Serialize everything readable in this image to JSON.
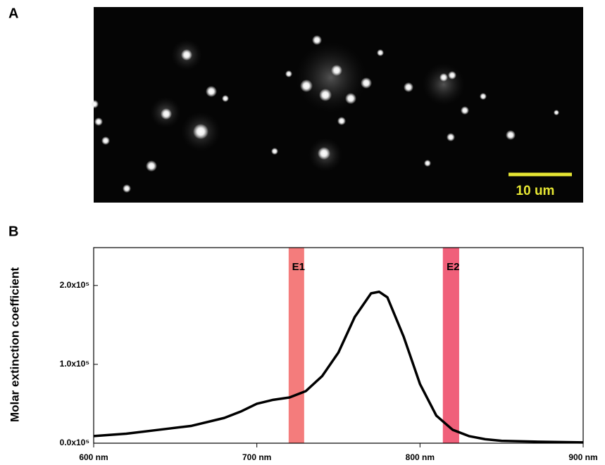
{
  "image": {
    "panel_label": "A",
    "scale_bar_label": "10 um"
  },
  "chart_data": {
    "type": "line",
    "panel_label": "B",
    "y_label": "Molar extinction coefficient",
    "x": [
      600,
      620,
      640,
      660,
      680,
      690,
      700,
      710,
      720,
      730,
      740,
      750,
      760,
      770,
      775,
      780,
      790,
      800,
      810,
      820,
      830,
      840,
      850,
      870,
      900
    ],
    "series": [
      {
        "color": "#000000",
        "values": [
          9000,
          12000,
          17000,
          22000,
          32000,
          40000,
          50000,
          55000,
          58000,
          66000,
          85000,
          115000,
          160000,
          190000,
          192000,
          185000,
          135000,
          75000,
          35000,
          17000,
          9000,
          5000,
          3000,
          2000,
          1000
        ]
      }
    ],
    "bands": [
      {
        "label": "E1",
        "range": [
          719.5,
          729
        ],
        "color": "#f47c7c"
      },
      {
        "label": "E2",
        "range": [
          814,
          824
        ],
        "color": "#f0607a"
      }
    ],
    "xlim": [
      600,
      900
    ],
    "xticks": [
      {
        "value": 600,
        "label": "600 nm"
      },
      {
        "value": 700,
        "label": "700 nm"
      },
      {
        "value": 800,
        "label": "800 nm"
      },
      {
        "value": 900,
        "label": "900 nm"
      }
    ],
    "ylim": [
      0,
      248000
    ],
    "yticks": [
      {
        "value": 0,
        "label": "0.0x10⁵"
      },
      {
        "value": 100000,
        "label": "1.0x10⁵"
      },
      {
        "value": 200000,
        "label": "2.0x10⁵"
      }
    ]
  }
}
